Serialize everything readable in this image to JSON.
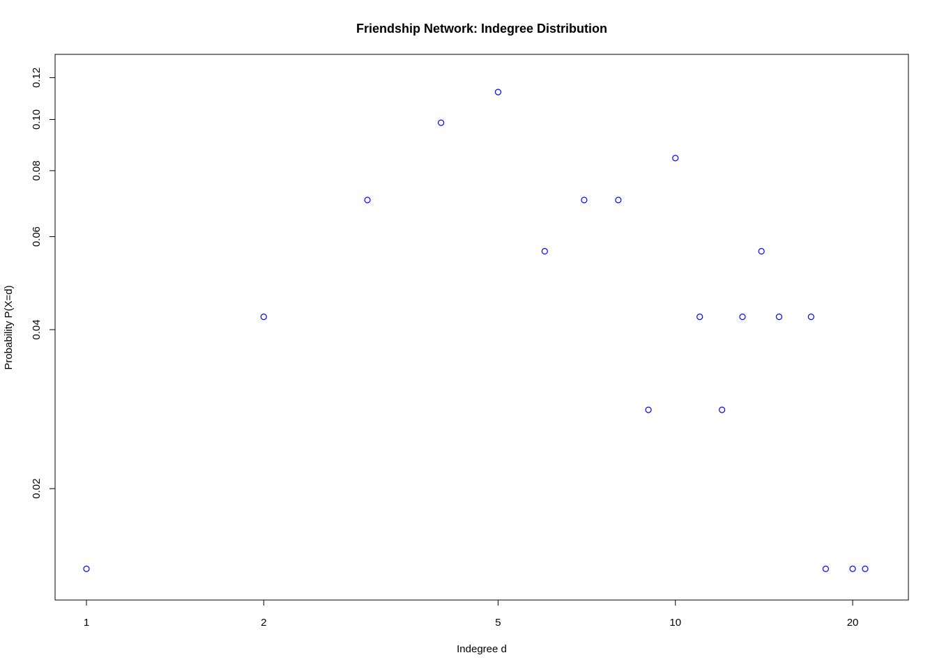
{
  "chart_data": {
    "type": "scatter",
    "title": "Friendship Network: Indegree Distribution",
    "xlabel": "Indegree d",
    "ylabel": "Probability P(X=d)",
    "x_scale": "log",
    "y_scale": "log",
    "xlim": [
      1,
      22
    ],
    "ylim": [
      0.0134,
      0.122
    ],
    "x_ticks": [
      1,
      2,
      5,
      10,
      20
    ],
    "x_tick_labels": [
      "1",
      "2",
      "5",
      "10",
      "20"
    ],
    "y_ticks": [
      0.02,
      0.04,
      0.06,
      0.08,
      0.1,
      0.12
    ],
    "y_tick_labels": [
      "0.02",
      "0.04",
      "0.06",
      "0.08",
      "0.10",
      "0.12"
    ],
    "grid": false,
    "legend": "none",
    "marker": "open-circle",
    "point_color": "#0000ff",
    "series": [
      {
        "x": [
          1,
          2,
          3,
          4,
          5,
          6,
          7,
          8,
          9,
          10,
          11,
          12,
          13,
          14,
          15,
          17,
          18,
          20,
          21
        ],
        "y": [
          0.0141,
          0.0423,
          0.0704,
          0.0986,
          0.1127,
          0.0563,
          0.0704,
          0.0704,
          0.0282,
          0.0845,
          0.0423,
          0.0282,
          0.0423,
          0.0563,
          0.0423,
          0.0423,
          0.0141,
          0.0141,
          0.0141
        ]
      }
    ]
  }
}
